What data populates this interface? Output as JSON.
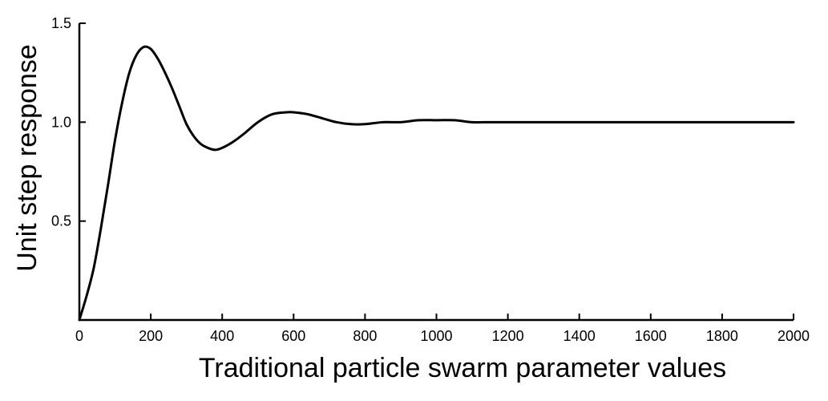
{
  "chart_data": {
    "type": "line",
    "xlabel": "Traditional particle swarm parameter values",
    "ylabel": "Unit step response",
    "xlim": [
      0,
      2000
    ],
    "ylim": [
      0,
      1.5
    ],
    "x_ticks": [
      0,
      200,
      400,
      600,
      800,
      1000,
      1200,
      1400,
      1600,
      1800,
      2000
    ],
    "x_tick_labels": [
      "0",
      "200",
      "400",
      "600",
      "800",
      "1000",
      "1200",
      "1400",
      "1600",
      "1800",
      "2000"
    ],
    "y_ticks": [
      0.5,
      1.0,
      1.5
    ],
    "y_tick_labels": [
      "0.5",
      "1.0",
      "1.5"
    ],
    "grid": false,
    "line_color": "#000000",
    "series": [
      {
        "x": [
          0,
          20,
          40,
          60,
          80,
          100,
          120,
          140,
          160,
          180,
          200,
          220,
          240,
          260,
          280,
          300,
          320,
          340,
          360,
          380,
          400,
          430,
          460,
          500,
          540,
          580,
          600,
          640,
          680,
          720,
          760,
          800,
          850,
          900,
          950,
          1000,
          1050,
          1100,
          1150,
          1200,
          1400,
          1600,
          1800,
          2000
        ],
        "y": [
          0.0,
          0.12,
          0.26,
          0.46,
          0.68,
          0.91,
          1.1,
          1.25,
          1.34,
          1.38,
          1.37,
          1.32,
          1.25,
          1.17,
          1.08,
          0.99,
          0.93,
          0.89,
          0.87,
          0.86,
          0.87,
          0.9,
          0.94,
          1.0,
          1.04,
          1.05,
          1.05,
          1.04,
          1.02,
          1.0,
          0.99,
          0.99,
          1.0,
          1.0,
          1.01,
          1.01,
          1.01,
          1.0,
          1.0,
          1.0,
          1.0,
          1.0,
          1.0,
          1.0
        ]
      }
    ]
  }
}
